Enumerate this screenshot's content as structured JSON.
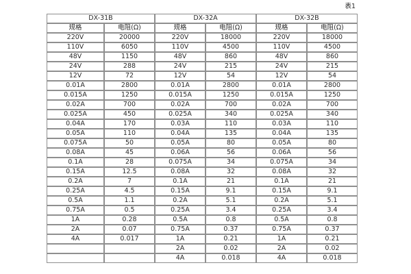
{
  "page": {
    "background": "#ffffff",
    "table_label": "表1"
  },
  "table": {
    "border_color": "#8f8f8f",
    "text_color": "#2b2b2b",
    "groups": [
      {
        "name": "DX-31B",
        "col_headers": [
          "规格",
          "电阻(Ω)"
        ]
      },
      {
        "name": "DX-32A",
        "col_headers": [
          "规格",
          "电阻(Ω)"
        ]
      },
      {
        "name": "DX-32B",
        "col_headers": [
          "规格",
          "电阻(Ω)"
        ]
      }
    ],
    "rows": [
      [
        "220V",
        "20000",
        "220V",
        "18000",
        "220V",
        "18000"
      ],
      [
        "110V",
        "6050",
        "110V",
        "4500",
        "110V",
        "4500"
      ],
      [
        "48V",
        "1150",
        "48V",
        "860",
        "48V",
        "860"
      ],
      [
        "24V",
        "288",
        "24V",
        "215",
        "24V",
        "215"
      ],
      [
        "12V",
        "72",
        "12V",
        "54",
        "12V",
        "54"
      ],
      [
        "0.01A",
        "2800",
        "0.01A",
        "2800",
        "0.01A",
        "2800"
      ],
      [
        "0.015A",
        "1250",
        "0.015A",
        "1250",
        "0.015A",
        "1250"
      ],
      [
        "0.02A",
        "700",
        "0.02A",
        "700",
        "0.02A",
        "700"
      ],
      [
        "0.025A",
        "450",
        "0.025A",
        "340",
        "0.025A",
        "340"
      ],
      [
        "0.04A",
        "170",
        "0.03A",
        "110",
        "0.03A",
        "110"
      ],
      [
        "0.05A",
        "110",
        "0.04A",
        "135",
        "0.04A",
        "135"
      ],
      [
        "0.075A",
        "50",
        "0.05A",
        "80",
        "0.05A",
        "80"
      ],
      [
        "0.08A",
        "45",
        "0.06A",
        "56",
        "0.06A",
        "56"
      ],
      [
        "0.1A",
        "28",
        "0.075A",
        "34",
        "0.075A",
        "34"
      ],
      [
        "0.15A",
        "12.5",
        "0.08A",
        "32",
        "0.08A",
        "32"
      ],
      [
        "0.2A",
        "7",
        "0.1A",
        "21",
        "0.1A",
        "21"
      ],
      [
        "0.25A",
        "4.5",
        "0.15A",
        "9.1",
        "0.15A",
        "9.1"
      ],
      [
        "0.5A",
        "1.1",
        "0.2A",
        "5.1",
        "0.2A",
        "5.1"
      ],
      [
        "0.75A",
        "0.5",
        "0.25A",
        "3.4",
        "0.25A",
        "3.4"
      ],
      [
        "1A",
        "0.28",
        "0.5A",
        "0.8",
        "0.5A",
        "0.8"
      ],
      [
        "2A",
        "0.07",
        "0.75A",
        "0.37",
        "0.75A",
        "0.37"
      ],
      [
        "4A",
        "0.017",
        "1A",
        "0.21",
        "1A",
        "0.21"
      ],
      [
        "",
        "",
        "2A",
        "0.02",
        "2A",
        "0.02"
      ],
      [
        "",
        "",
        "4A",
        "0.018",
        "4A",
        "0.018"
      ]
    ]
  }
}
